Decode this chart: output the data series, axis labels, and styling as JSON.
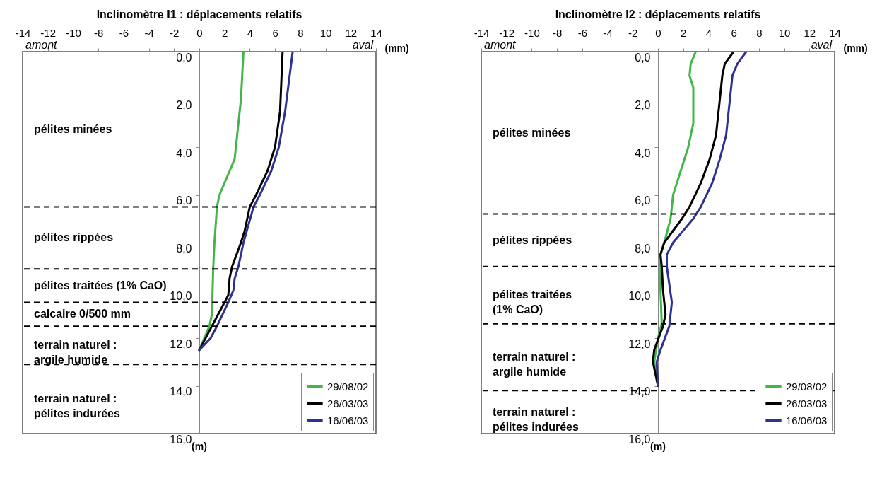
{
  "chart_data": [
    {
      "type": "line",
      "title": "Inclinomètre I1 : déplacements relatifs",
      "xlabel": "(mm)",
      "xlim": [
        -14,
        14
      ],
      "xticks": [
        -14,
        -12,
        -10,
        -8,
        -6,
        -4,
        -2,
        0,
        2,
        4,
        6,
        8,
        10,
        12,
        14
      ],
      "ylim": [
        16,
        0
      ],
      "yticks": [
        {
          "value": 0,
          "label": "0,0"
        },
        {
          "value": 2,
          "label": "2,0"
        },
        {
          "value": 4,
          "label": "4,0"
        },
        {
          "value": 6,
          "label": "6,0"
        },
        {
          "value": 8,
          "label": "8,0"
        },
        {
          "value": 10,
          "label": "10,0"
        },
        {
          "value": 12,
          "label": "12,0"
        },
        {
          "value": 14,
          "label": "14,0"
        },
        {
          "value": 16,
          "label": "16,0"
        }
      ],
      "grid": false,
      "legend": "bottom right",
      "series": [
        {
          "name": "29/08/02",
          "color": "#44b549",
          "x": [
            3.5,
            3.3,
            2.9,
            2.8,
            1.6,
            1.4,
            1.2,
            1.1,
            1.0,
            0.8,
            0
          ],
          "values": [
            0,
            2,
            4,
            4.5,
            6,
            6.5,
            8,
            9.1,
            11,
            11.5,
            12.5
          ]
        },
        {
          "name": "26/03/03",
          "color": "#000000",
          "x": [
            6.6,
            6.4,
            6.0,
            5.4,
            4.5,
            4.0,
            3.6,
            3.3,
            2.6,
            2.4,
            2.3,
            1.5,
            1.0,
            0
          ],
          "values": [
            0,
            2.5,
            4,
            5,
            6,
            6.5,
            7.5,
            8,
            9,
            9.5,
            10.2,
            11,
            11.5,
            12.5
          ]
        },
        {
          "name": "16/06/03",
          "color": "#2e3192",
          "x": [
            7.4,
            6.8,
            6.3,
            5.7,
            4.8,
            4.3,
            3.5,
            3.1,
            2.8,
            2.7,
            2.3,
            1.4,
            0.9,
            0
          ],
          "values": [
            0,
            2.5,
            4,
            5,
            6,
            6.5,
            8,
            9,
            9.5,
            10,
            10.5,
            11.5,
            12,
            12.5
          ]
        }
      ],
      "ref_lines": [
        {
          "axis": "y",
          "value": 6.5,
          "line_style": "dashed"
        },
        {
          "axis": "y",
          "value": 9.1,
          "line_style": "dashed"
        },
        {
          "axis": "y",
          "value": 10.5,
          "line_style": "dashed"
        },
        {
          "axis": "y",
          "value": 11.5,
          "line_style": "dashed"
        },
        {
          "axis": "y",
          "value": 13.1,
          "line_style": "dashed"
        }
      ],
      "annotations": [
        "amont",
        "aval",
        "(m)",
        "pélites minées",
        "pélites rippées",
        "pélites traitées (1% CaO)",
        "calcaire 0/500 mm",
        "terrain naturel :\nargile humide",
        "terrain naturel :\npélites indurées"
      ]
    },
    {
      "type": "line",
      "title": "Inclinomètre I2 : déplacements relatifs",
      "xlabel": "(mm)",
      "xlim": [
        -14,
        14
      ],
      "xticks": [
        -14,
        -12,
        -10,
        -8,
        -6,
        -4,
        -2,
        0,
        2,
        4,
        6,
        8,
        10,
        12,
        14
      ],
      "ylim": [
        16,
        0
      ],
      "yticks": [
        {
          "value": 0,
          "label": "0,0"
        },
        {
          "value": 2,
          "label": "2,0"
        },
        {
          "value": 4,
          "label": "4,0"
        },
        {
          "value": 6,
          "label": "6,0"
        },
        {
          "value": 8,
          "label": "8,0"
        },
        {
          "value": 10,
          "label": "10,0"
        },
        {
          "value": 12,
          "label": "12,0"
        },
        {
          "value": 14,
          "label": "14,0"
        },
        {
          "value": 16,
          "label": "16,0"
        }
      ],
      "grid": false,
      "legend": "bottom right",
      "series": [
        {
          "name": "29/08/02",
          "color": "#44b549",
          "x": [
            3.0,
            2.6,
            2.5,
            2.8,
            2.8,
            2.4,
            1.8,
            1.5,
            1.2,
            1.0,
            0.5,
            0.2,
            0.2,
            0.2,
            0.3,
            0.0,
            -0.3,
            0.0
          ],
          "values": [
            0,
            0.5,
            1,
            1.5,
            3,
            4,
            5,
            5.5,
            6,
            7,
            8,
            8.5,
            9,
            10,
            11.4,
            12,
            13,
            14
          ]
        },
        {
          "name": "26/03/03",
          "color": "#000000",
          "x": [
            6.0,
            5.3,
            5.1,
            4.9,
            4.6,
            4.1,
            3.4,
            2.5,
            1.9,
            0.5,
            0.2,
            0.3,
            0.4,
            0.6,
            0.4,
            -0.3,
            -0.4,
            0.0
          ],
          "values": [
            0,
            0.5,
            1,
            2,
            3.5,
            4.5,
            5.5,
            6.5,
            7,
            8,
            8.5,
            9,
            10,
            11,
            11.5,
            12.5,
            13,
            14
          ]
        },
        {
          "name": "16/06/03",
          "color": "#2e3192",
          "x": [
            7.0,
            6.3,
            5.9,
            5.7,
            5.4,
            4.9,
            4.3,
            3.4,
            2.8,
            2.0,
            1.2,
            0.7,
            0.7,
            1.1,
            0.9,
            0.2,
            -0.1,
            0.0
          ],
          "values": [
            0,
            0.5,
            1,
            2,
            3.5,
            4.5,
            5.5,
            6.5,
            7,
            7.5,
            8,
            8.5,
            9,
            10.5,
            11.5,
            12.5,
            13,
            14
          ]
        }
      ],
      "ref_lines": [
        {
          "axis": "y",
          "value": 6.8,
          "line_style": "dashed"
        },
        {
          "axis": "y",
          "value": 9.0,
          "line_style": "dashed"
        },
        {
          "axis": "y",
          "value": 11.4,
          "line_style": "dashed"
        },
        {
          "axis": "y",
          "value": 14.2,
          "line_style": "dashed"
        }
      ],
      "annotations": [
        "amont",
        "aval",
        "(m)",
        "pélites minées",
        "pélites rippées",
        "pélites traitées\n(1% CaO)",
        "terrain naturel :\nargile humide",
        "terrain naturel :\npélites indurées"
      ]
    }
  ]
}
